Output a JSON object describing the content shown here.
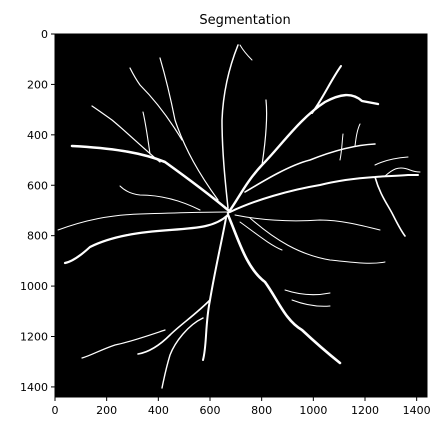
{
  "figure": {
    "title": "Segmentation"
  },
  "chart_data": {
    "type": "heatmap",
    "title": "Segmentation",
    "xlabel": "",
    "ylabel": "",
    "xlim": [
      0,
      1440
    ],
    "ylim": [
      1440,
      0
    ],
    "x_ticks": [
      0,
      200,
      400,
      600,
      800,
      1000,
      1200,
      1400
    ],
    "y_ticks": [
      0,
      200,
      400,
      600,
      800,
      1000,
      1200,
      1400
    ],
    "x_tick_labels": [
      "0",
      "200",
      "400",
      "600",
      "800",
      "1000",
      "1200",
      "1400"
    ],
    "y_tick_labels": [
      "0",
      "200",
      "400",
      "600",
      "800",
      "1000",
      "1200",
      "1400"
    ],
    "background_color": "#000000",
    "foreground_color": "#ffffff",
    "grid": false,
    "content": "binary retinal vessel segmentation mask"
  }
}
